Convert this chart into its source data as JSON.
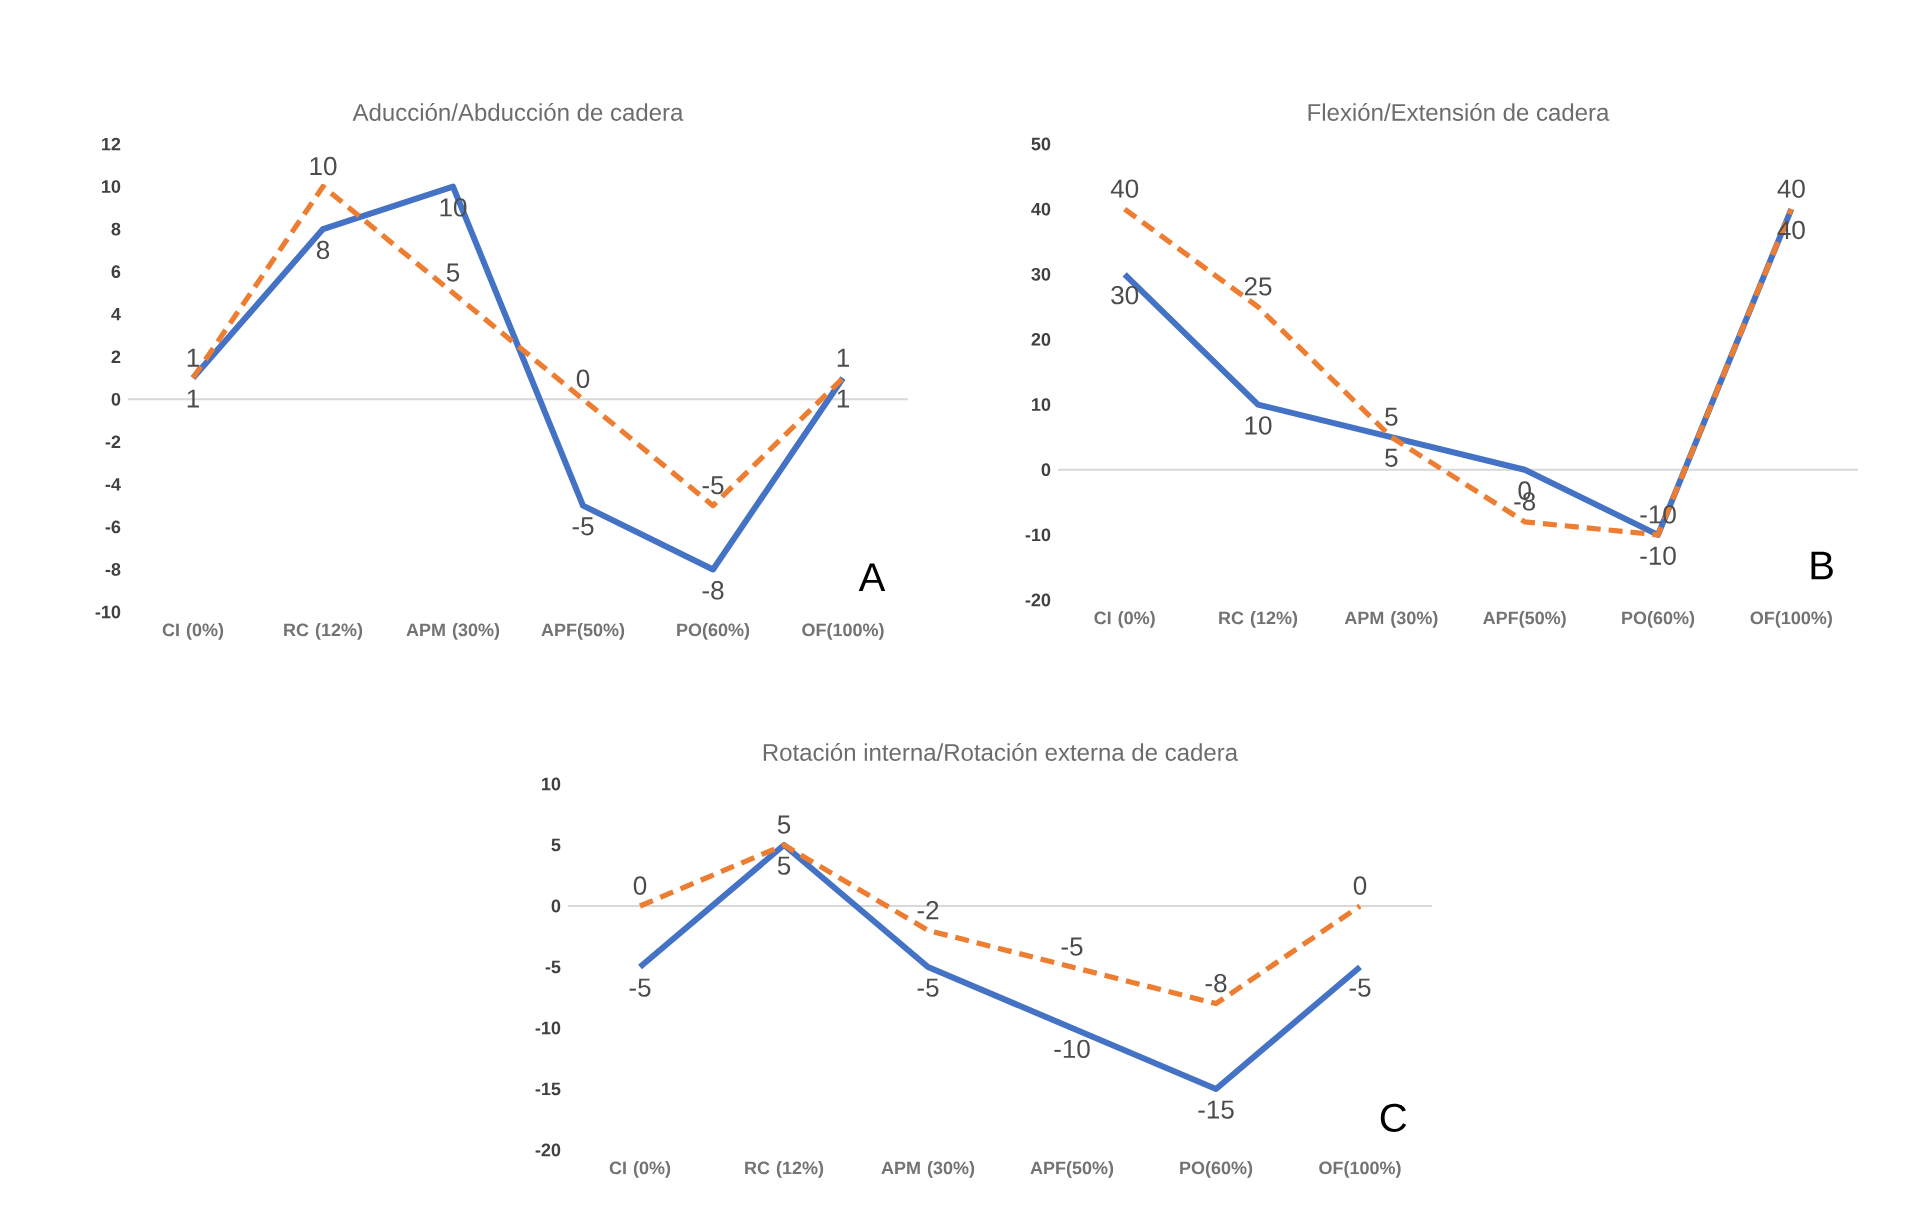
{
  "chart_data": [
    {
      "type": "line",
      "title": "Aducción/Abducción de cadera",
      "categories": [
        "CI (0%)",
        "RC (12%)",
        "APM (30%)",
        "APF(50%)",
        "PO(60%)",
        "OF(100%)"
      ],
      "series": [
        {
          "color": "#4472c4",
          "values": [
            1,
            8,
            10,
            -5,
            -8,
            1
          ],
          "line_style": "solid"
        },
        {
          "color": "#ed7d31",
          "values": [
            1,
            10,
            5,
            0,
            -5,
            1
          ],
          "line_style": "dashed"
        }
      ],
      "ref_lines": [
        {
          "axis": "y",
          "value": 0,
          "color": "#d9d9d9"
        }
      ],
      "ylim": [
        -10,
        12
      ],
      "yticks": [
        -10,
        -8,
        -6,
        -4,
        -2,
        0,
        2,
        4,
        6,
        8,
        10,
        12
      ],
      "data_labels": true,
      "grid": false,
      "marker": "none",
      "annotations": [
        "A"
      ]
    },
    {
      "type": "line",
      "title": "Flexión/Extensión de cadera",
      "categories": [
        "CI (0%)",
        "RC (12%)",
        "APM (30%)",
        "APF(50%)",
        "PO(60%)",
        "OF(100%)"
      ],
      "series": [
        {
          "color": "#4472c4",
          "values": [
            30,
            10,
            5,
            0,
            -10,
            40
          ],
          "line_style": "solid"
        },
        {
          "color": "#ed7d31",
          "values": [
            40,
            25,
            5,
            -8,
            -10,
            40
          ],
          "line_style": "dashed"
        }
      ],
      "ref_lines": [
        {
          "axis": "y",
          "value": 0,
          "color": "#d9d9d9"
        }
      ],
      "ylim": [
        -20,
        50
      ],
      "yticks": [
        -20,
        -10,
        0,
        10,
        20,
        30,
        40,
        50
      ],
      "data_labels": true,
      "grid": false,
      "marker": "none",
      "annotations": [
        "B"
      ]
    },
    {
      "type": "line",
      "title": "Rotación interna/Rotación externa de cadera",
      "categories": [
        "CI (0%)",
        "RC (12%)",
        "APM (30%)",
        "APF(50%)",
        "PO(60%)",
        "OF(100%)"
      ],
      "series": [
        {
          "color": "#4472c4",
          "values": [
            -5,
            5,
            -5,
            -10,
            -15,
            -5
          ],
          "line_style": "solid"
        },
        {
          "color": "#ed7d31",
          "values": [
            0,
            5,
            -2,
            -5,
            -8,
            0
          ],
          "line_style": "dashed"
        }
      ],
      "ref_lines": [
        {
          "axis": "y",
          "value": 0,
          "color": "#d9d9d9"
        }
      ],
      "ylim": [
        -20,
        10
      ],
      "yticks": [
        -20,
        -15,
        -10,
        -5,
        0,
        5,
        10
      ],
      "data_labels": true,
      "grid": false,
      "marker": "none",
      "annotations": [
        "C"
      ]
    }
  ]
}
